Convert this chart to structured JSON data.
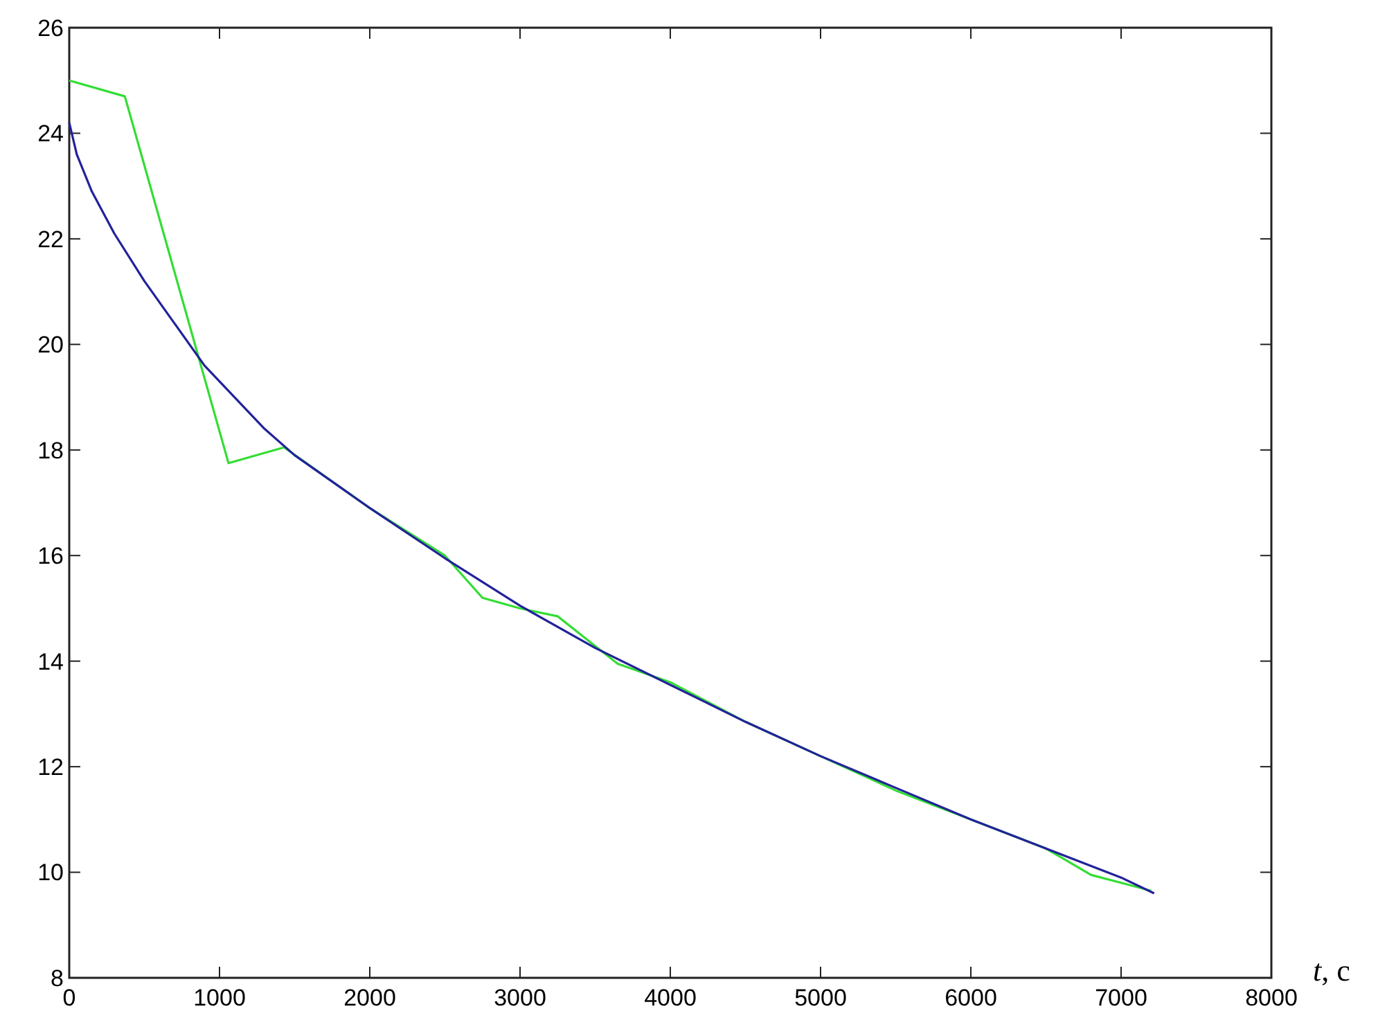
{
  "chart_data": {
    "type": "line",
    "xlabel": "t, с",
    "xlim": [
      0,
      8000
    ],
    "ylim": [
      8,
      26
    ],
    "xticks": [
      0,
      1000,
      2000,
      3000,
      4000,
      5000,
      6000,
      7000,
      8000
    ],
    "yticks": [
      8,
      10,
      12,
      14,
      16,
      18,
      20,
      22,
      24,
      26
    ],
    "grid": false,
    "marker": "none",
    "line_style": "solid",
    "series": [
      {
        "color": "#33dd33",
        "x": [
          0,
          370,
          1060,
          1430,
          2000,
          2500,
          2750,
          3000,
          3250,
          3450,
          3650,
          4000,
          4500,
          5000,
          5500,
          6000,
          6500,
          6800,
          7000,
          7200
        ],
        "values": [
          25,
          24.7,
          17.75,
          18.05,
          16.9,
          16.0,
          15.2,
          15.0,
          14.85,
          14.4,
          13.95,
          13.6,
          12.85,
          12.2,
          11.55,
          11.0,
          10.45,
          9.95,
          9.8,
          9.65
        ]
      },
      {
        "color": "#22229a",
        "x": [
          0,
          50,
          150,
          300,
          500,
          700,
          900,
          1100,
          1300,
          1500,
          1800,
          2000,
          2500,
          3000,
          3500,
          4000,
          4500,
          5000,
          5500,
          6000,
          6500,
          7000,
          7220
        ],
        "values": [
          24.2,
          23.6,
          22.9,
          22.1,
          21.2,
          20.4,
          19.6,
          19.0,
          18.4,
          17.9,
          17.3,
          16.9,
          15.95,
          15.05,
          14.25,
          13.55,
          12.85,
          12.2,
          11.6,
          11.0,
          10.45,
          9.9,
          9.6
        ]
      }
    ]
  }
}
